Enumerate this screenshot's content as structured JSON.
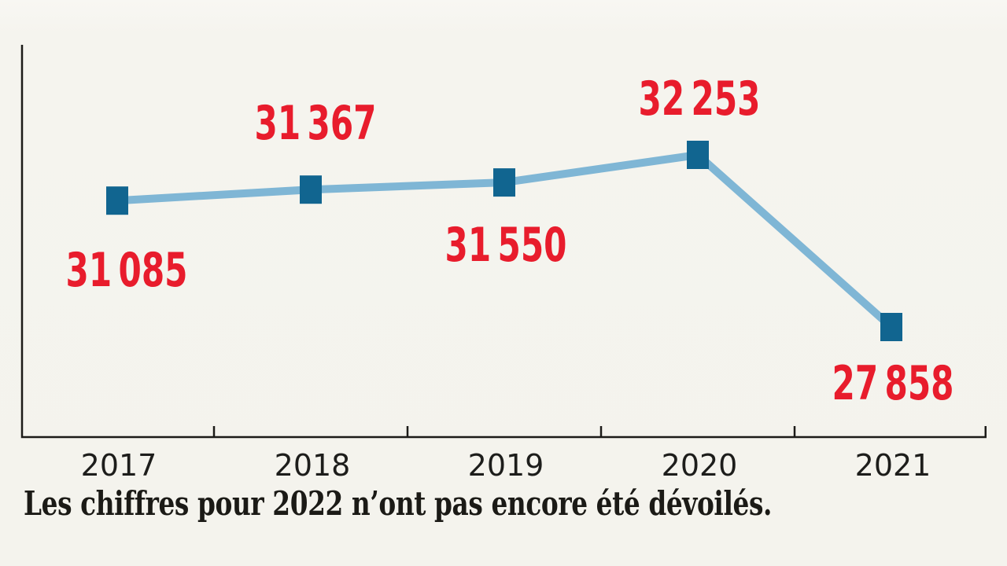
{
  "chart_data": {
    "type": "line",
    "categories": [
      "2017",
      "2018",
      "2019",
      "2020",
      "2021"
    ],
    "values": [
      31085,
      31367,
      31550,
      32253,
      27858
    ],
    "value_labels": [
      "31 085",
      "31 367",
      "31 550",
      "32 253",
      "27 858"
    ],
    "label_placement": [
      "below",
      "above",
      "below",
      "above",
      "below"
    ],
    "ylim": [
      27500,
      32500
    ],
    "grid": false,
    "legend": false,
    "marker_shape": "square"
  },
  "caption": "Les chiffres pour 2022 n’ont pas encore été dévoilés.",
  "colors": {
    "background": "#f5f4ef",
    "axis": "#1c1b18",
    "line_blue": "#7fb6d5",
    "marker_blue": "#116590",
    "value_label_red": "#e81c2c",
    "year_label": "#1d1d1b",
    "caption_text": "#1b1a16"
  }
}
